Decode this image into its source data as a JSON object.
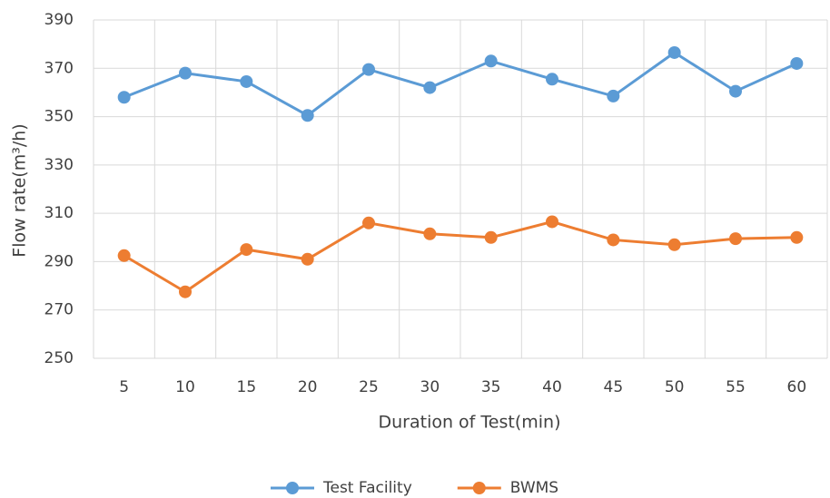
{
  "chart_data": {
    "type": "line",
    "categories": [
      "5",
      "10",
      "15",
      "20",
      "25",
      "30",
      "35",
      "40",
      "45",
      "50",
      "55",
      "60"
    ],
    "series": [
      {
        "name": "Test Facility",
        "color": "#5b9bd5",
        "values": [
          358,
          368,
          364.5,
          350.5,
          369.5,
          362,
          373,
          365.5,
          358.5,
          376.5,
          360.5,
          372
        ]
      },
      {
        "name": "BWMS",
        "color": "#ed7d31",
        "values": [
          292.5,
          277.5,
          295,
          291,
          306,
          301.5,
          300,
          306.5,
          299,
          297,
          299.5,
          300
        ]
      }
    ],
    "x_label": "Duration of Test(min)",
    "y_label": "Flow rate(m³/h)",
    "ylim": [
      250,
      390
    ],
    "yticks": [
      250,
      270,
      290,
      310,
      330,
      350,
      370,
      390
    ],
    "grid": true,
    "legend": "bottom"
  }
}
